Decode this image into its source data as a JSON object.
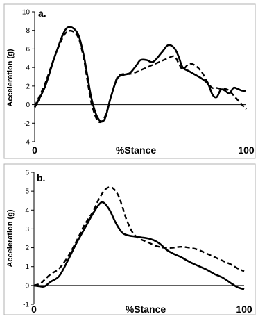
{
  "chart_data": [
    {
      "type": "line",
      "panel_label": "a.",
      "ylabel": "Acceleration (g)",
      "xlabel": "%Stance",
      "ylim": [
        -4,
        10
      ],
      "yticks": [
        -4,
        -2,
        0,
        2,
        4,
        6,
        8,
        10
      ],
      "xticks": [
        0,
        100
      ],
      "xlim": [
        0,
        100
      ],
      "series": [
        {
          "style": "solid",
          "x": [
            0,
            5,
            10,
            15,
            20,
            23,
            25,
            27,
            30,
            33,
            36,
            39,
            42,
            45,
            48,
            50,
            53,
            56,
            60,
            63,
            66,
            68,
            70,
            73,
            76,
            79,
            82,
            84,
            86,
            88,
            90,
            92,
            94,
            96,
            98,
            100
          ],
          "y": [
            -0.3,
            2,
            5.5,
            8.2,
            7.8,
            5.5,
            3,
            0.5,
            -1.5,
            -1.6,
            0.8,
            2.8,
            3.2,
            3.4,
            4.2,
            4.8,
            4.8,
            4.6,
            5.6,
            6.4,
            6.1,
            5.2,
            4,
            3.6,
            3.2,
            2.8,
            2.2,
            1.1,
            0.8,
            1.6,
            1.5,
            1.2,
            1.8,
            1.7,
            1.5,
            1.5
          ]
        },
        {
          "style": "dashed",
          "x": [
            0,
            5,
            10,
            15,
            20,
            23,
            25,
            27,
            30,
            33,
            36,
            39,
            42,
            45,
            48,
            50,
            53,
            56,
            60,
            63,
            66,
            68,
            70,
            73,
            76,
            79,
            82,
            84,
            86,
            88,
            90,
            92,
            94,
            96,
            98,
            100
          ],
          "y": [
            -0.2,
            2.3,
            5.5,
            7.8,
            7.5,
            5.2,
            2.5,
            0,
            -1.8,
            -1.4,
            0.8,
            2.9,
            3.3,
            3.3,
            3.5,
            3.7,
            4,
            4.3,
            4.7,
            5,
            5.2,
            4.5,
            3.8,
            4.4,
            4.2,
            3.5,
            2.3,
            1.8,
            1.8,
            1.7,
            1.7,
            1.5,
            1,
            0.5,
            0,
            -0.5
          ]
        }
      ]
    },
    {
      "type": "line",
      "panel_label": "b.",
      "ylabel": "Acceleration (g)",
      "xlabel": "%Stance",
      "ylim": [
        -1,
        6
      ],
      "yticks": [
        -1,
        0,
        1,
        2,
        3,
        4,
        5,
        6
      ],
      "xticks": [
        0,
        100
      ],
      "xlim": [
        0,
        100
      ],
      "series": [
        {
          "style": "solid",
          "x": [
            0,
            3,
            5,
            8,
            12,
            16,
            20,
            24,
            28,
            31,
            33,
            36,
            39,
            42,
            45,
            48,
            51,
            54,
            57,
            60,
            63,
            66,
            70,
            74,
            78,
            82,
            86,
            90,
            94,
            97,
            100
          ],
          "y": [
            0,
            -0.05,
            -0.05,
            0.2,
            0.5,
            1.3,
            2.2,
            3,
            3.8,
            4.3,
            4.4,
            4,
            3.3,
            2.8,
            2.65,
            2.6,
            2.55,
            2.5,
            2.4,
            2.2,
            1.9,
            1.7,
            1.5,
            1.25,
            1.05,
            0.85,
            0.6,
            0.4,
            0.1,
            -0.1,
            -0.2
          ]
        },
        {
          "style": "dashed",
          "x": [
            0,
            3,
            5,
            8,
            12,
            16,
            20,
            24,
            28,
            31,
            34,
            37,
            40,
            42,
            44,
            47,
            50,
            54,
            58,
            62,
            66,
            70,
            74,
            78,
            82,
            86,
            90,
            94,
            97,
            100
          ],
          "y": [
            0,
            0.1,
            0.3,
            0.6,
            0.9,
            1.5,
            2.3,
            3.2,
            3.9,
            4.6,
            5.1,
            5.2,
            4.8,
            4.2,
            3.5,
            2.8,
            2.5,
            2.3,
            2.1,
            2,
            2,
            2.05,
            2,
            1.9,
            1.7,
            1.5,
            1.3,
            1.1,
            0.9,
            0.75
          ]
        }
      ]
    }
  ]
}
